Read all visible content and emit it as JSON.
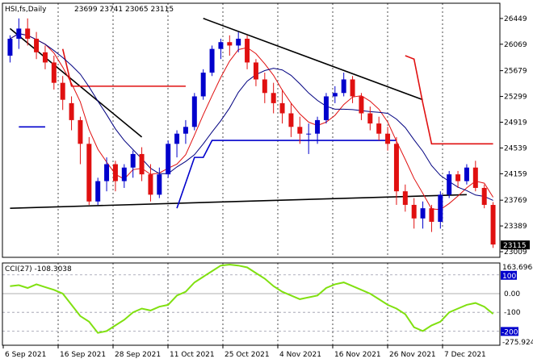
{
  "header": {
    "symbol": "HSI,fs,Daily",
    "ohlc": "23699 23741 23065 23115"
  },
  "colors": {
    "bull": "#0000cc",
    "bear": "#e01010",
    "ma_fast": "#000080",
    "ma_slow": "#e01010",
    "trend": "#000000",
    "support": "#0000cc",
    "resistance": "#e01010",
    "cci": "#80e010",
    "level_line": "#0000cc"
  },
  "price_axis": {
    "ticks": [
      "26449",
      "26069",
      "25679",
      "25299",
      "24919",
      "24539",
      "24159",
      "23769",
      "23389",
      "23009"
    ],
    "last": "23115"
  },
  "cci_axis": {
    "title": "CCI(27) -108.3038",
    "max": "163.6968",
    "min": "-275.9244",
    "ticks": [
      "100",
      "0.00",
      "-100"
    ],
    "level_label": "-200"
  },
  "x_axis": {
    "labels": [
      "6 Sep 2021",
      "16 Sep 2021",
      "28 Sep 2021",
      "11 Oct 2021",
      "25 Oct 2021",
      "4 Nov 2021",
      "16 Nov 2021",
      "26 Nov 2021",
      "7 Dec 2021"
    ]
  },
  "chart_data": {
    "type": "candlestick",
    "title": "HSI,fs,Daily",
    "ylim": [
      22950,
      26650
    ],
    "candles": [
      [
        25900,
        26200,
        25800,
        26150
      ],
      [
        26150,
        26450,
        26000,
        26300
      ],
      [
        26300,
        26450,
        26050,
        26150
      ],
      [
        26150,
        26250,
        25850,
        25950
      ],
      [
        25950,
        26050,
        25700,
        25800
      ],
      [
        25800,
        25900,
        25400,
        25500
      ],
      [
        25500,
        25600,
        25100,
        25250
      ],
      [
        25200,
        25300,
        24800,
        24950
      ],
      [
        24950,
        25000,
        24300,
        24600
      ],
      [
        24600,
        24700,
        23700,
        23750
      ],
      [
        23750,
        24100,
        23700,
        24050
      ],
      [
        24050,
        24400,
        23900,
        24300
      ],
      [
        24300,
        24350,
        23900,
        24050
      ],
      [
        24050,
        24300,
        23950,
        24250
      ],
      [
        24250,
        24500,
        24100,
        24450
      ],
      [
        24450,
        24550,
        24050,
        24150
      ],
      [
        24150,
        24300,
        23750,
        23850
      ],
      [
        23850,
        24250,
        23800,
        24150
      ],
      [
        24150,
        24650,
        24100,
        24600
      ],
      [
        24600,
        24800,
        24400,
        24750
      ],
      [
        24750,
        24950,
        24600,
        24850
      ],
      [
        24850,
        25350,
        24800,
        25300
      ],
      [
        25300,
        25700,
        25250,
        25650
      ],
      [
        25650,
        26050,
        25600,
        26000
      ],
      [
        26000,
        26150,
        25850,
        26100
      ],
      [
        26100,
        26200,
        25900,
        26050
      ],
      [
        26050,
        26250,
        25950,
        26150
      ],
      [
        26150,
        26200,
        25700,
        25800
      ],
      [
        25800,
        25850,
        25450,
        25550
      ],
      [
        25550,
        25650,
        25200,
        25350
      ],
      [
        25350,
        25500,
        25050,
        25200
      ],
      [
        25200,
        25400,
        24900,
        25050
      ],
      [
        25050,
        25200,
        24700,
        24850
      ],
      [
        24850,
        25000,
        24600,
        24750
      ],
      [
        24750,
        24900,
        24450,
        24750
      ],
      [
        24750,
        25000,
        24600,
        24950
      ],
      [
        24950,
        25350,
        24900,
        25300
      ],
      [
        25300,
        25450,
        25200,
        25350
      ],
      [
        25350,
        25650,
        25300,
        25550
      ],
      [
        25550,
        25600,
        25200,
        25300
      ],
      [
        25300,
        25350,
        24950,
        25050
      ],
      [
        25050,
        25150,
        24800,
        24900
      ],
      [
        24900,
        25000,
        24650,
        24750
      ],
      [
        24750,
        24850,
        24500,
        24600
      ],
      [
        24600,
        24700,
        23700,
        23900
      ],
      [
        23900,
        24000,
        23600,
        23700
      ],
      [
        23700,
        23800,
        23350,
        23500
      ],
      [
        23500,
        23750,
        23350,
        23650
      ],
      [
        23650,
        23700,
        23300,
        23450
      ],
      [
        23450,
        23900,
        23350,
        23850
      ],
      [
        23850,
        24200,
        23800,
        24150
      ],
      [
        24150,
        24200,
        23950,
        24050
      ],
      [
        24050,
        24300,
        24000,
        24250
      ],
      [
        24250,
        24350,
        23900,
        23950
      ],
      [
        23950,
        24000,
        23650,
        23700
      ],
      [
        23699,
        23741,
        23065,
        23115
      ]
    ],
    "cci": [
      40,
      45,
      30,
      50,
      35,
      20,
      0,
      -60,
      -120,
      -150,
      -210,
      -200,
      -170,
      -140,
      -100,
      -80,
      -90,
      -70,
      -60,
      -10,
      10,
      60,
      90,
      120,
      150,
      155,
      150,
      140,
      110,
      80,
      40,
      10,
      -10,
      -30,
      -20,
      -10,
      30,
      50,
      60,
      40,
      20,
      0,
      -30,
      -60,
      -80,
      -110,
      -180,
      -200,
      -170,
      -150,
      -100,
      -80,
      -60,
      -50,
      -70,
      -108.3
    ]
  }
}
